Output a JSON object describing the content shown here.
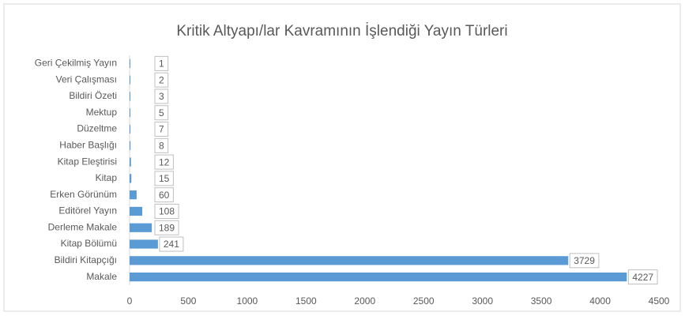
{
  "chart_data": {
    "type": "barh",
    "title": "Kritik Altyapı/lar Kavramının İşlendiği Yayın Türleri",
    "categories": [
      "Geri Çekilmiş Yayın",
      "Veri Çalışması",
      "Bildiri Özeti",
      "Mektup",
      "Düzeltme",
      "Haber Başlığı",
      "Kitap Eleştirisi",
      "Kitap",
      "Erken Görünüm",
      "Editörel Yayın",
      "Derleme Makale",
      "Kitap Bölümü",
      "Bildiri Kitapçığı",
      "Makale"
    ],
    "values": [
      1,
      2,
      3,
      5,
      7,
      8,
      12,
      15,
      60,
      108,
      189,
      241,
      3729,
      4227
    ],
    "color": "#5b9bd5",
    "xlim": [
      0,
      4500
    ],
    "xticks": [
      0,
      500,
      1000,
      1500,
      2000,
      2500,
      3000,
      3500,
      4000,
      4500
    ],
    "grid": false
  }
}
